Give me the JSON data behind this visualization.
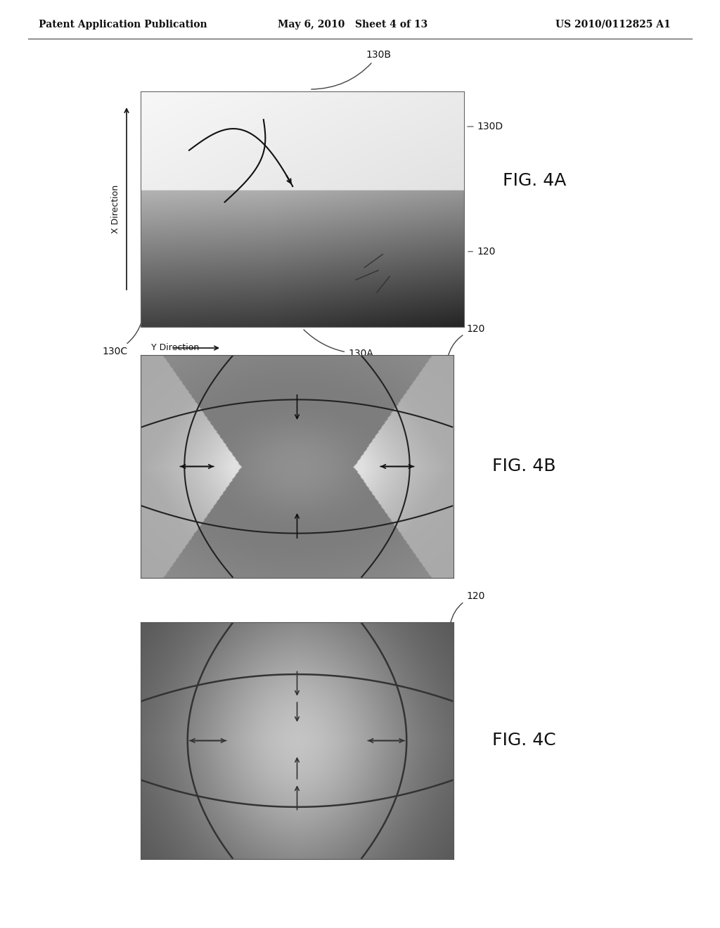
{
  "header_left": "Patent Application Publication",
  "header_mid": "May 6, 2010   Sheet 4 of 13",
  "header_right": "US 2010/0112825 A1",
  "fig4a_label": "FIG. 4A",
  "fig4b_label": "FIG. 4B",
  "fig4c_label": "FIG. 4C",
  "label_130B": "130B",
  "label_130D": "130D",
  "label_130C": "130C",
  "label_130A": "130A",
  "label_120_4a": "120",
  "label_120_4b": "120",
  "label_120_4c": "120",
  "label_x_dir": "X Direction",
  "label_y_dir": "Y Direction",
  "bg_color": "#ffffff",
  "header_fontsize": 10,
  "label_fontsize": 10,
  "fig_label_fontsize": 18
}
